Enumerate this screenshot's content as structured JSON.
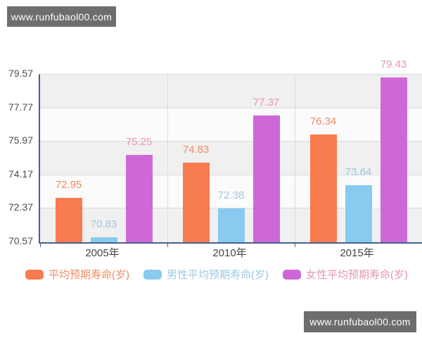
{
  "watermark": {
    "text": "www.runfubaol00.com"
  },
  "chart_data": {
    "type": "bar",
    "title": "",
    "categories": [
      "2005年",
      "2010年",
      "2015年"
    ],
    "series": [
      {
        "name": "平均预期寿命(岁)",
        "color": "#f87c50",
        "label_color": "#ef8a62",
        "values": [
          72.95,
          74.83,
          76.34
        ]
      },
      {
        "name": "男性平均预期寿命(岁)",
        "color": "#88caf0",
        "label_color": "#9cc8e2",
        "values": [
          70.83,
          72.38,
          73.64
        ]
      },
      {
        "name": "女性平均预期寿命(岁)",
        "color": "#ce68d8",
        "label_color": "#e897ad",
        "values": [
          75.25,
          77.37,
          79.43
        ]
      }
    ],
    "ylim": [
      70.57,
      79.57
    ],
    "ytick_labels": [
      "70.57",
      "72.37",
      "74.17",
      "75.97",
      "77.77",
      "79.57"
    ],
    "xlabel": "",
    "ylabel": "",
    "grid": true,
    "legend_position": "bottom",
    "colors": {
      "axis": "#46618c",
      "gridline": "#dcdcdc",
      "band_gray": "#f0f0f0",
      "band_light": "#fbfbfb",
      "tick_text": "#4d4d4d"
    }
  }
}
